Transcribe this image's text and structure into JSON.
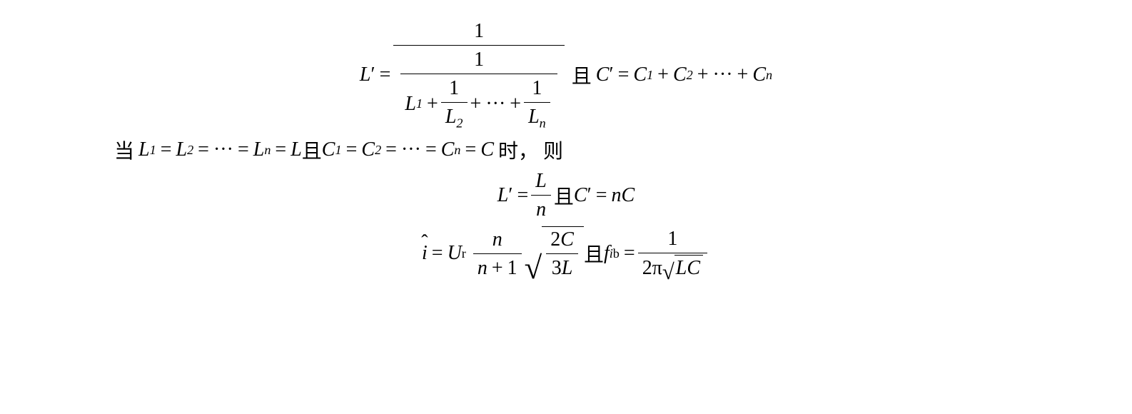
{
  "eq1": {
    "lhs_var": "L",
    "eq": "=",
    "top_one": "1",
    "den_L1": "L",
    "den_L1_sub": "1",
    "plus": "+",
    "one_a": "1",
    "L2": "L",
    "L2_sub": "2",
    "dots": "···",
    "one_b": "1",
    "Ln": "L",
    "Ln_sub": "n",
    "conj": "且",
    "C": "C",
    "C1": "C",
    "C1_sub": "1",
    "C2": "C",
    "C2_sub": "2",
    "Cn": "C",
    "Cn_sub": "n"
  },
  "line2": {
    "pre": "当",
    "L": "L",
    "s1": "1",
    "s2": "2",
    "sn": "n",
    "eq": "=",
    "dots": "···",
    "conj": "且",
    "C": "C",
    "post": "时，  则"
  },
  "eq2": {
    "L": "L",
    "n": "n",
    "eq": "=",
    "conj": "且",
    "C": "C",
    "nC_n": "n"
  },
  "eq3": {
    "i": "i",
    "eq": "=",
    "U": "U",
    "Usub": "r",
    "n": "n",
    "plus": "+",
    "one": "1",
    "two": "2",
    "C": "C",
    "three": "3",
    "L": "L",
    "conj": "且",
    "f": "f",
    "fsub1": "i",
    "fsub2": "b",
    "num1": "1",
    "twopi": "2π"
  },
  "colors": {
    "text": "#000000",
    "bg": "#ffffff"
  },
  "font": {
    "family": "Times New Roman",
    "size_pt": 28
  }
}
